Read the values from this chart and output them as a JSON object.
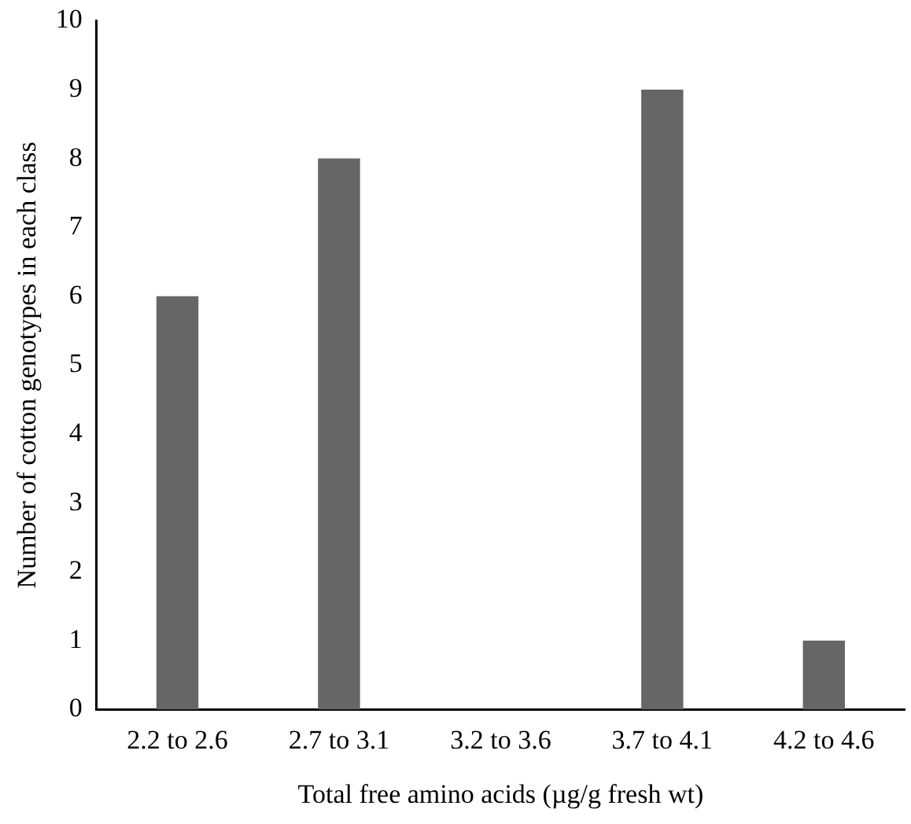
{
  "chart_data": {
    "type": "bar",
    "xlabel": "Total free amino acids (µg/g fresh wt)",
    "ylabel": "Number of cotton genotypes in each class",
    "categories": [
      "2.2 to 2.6",
      "2.7 to 3.1",
      "3.2 to 3.6",
      "3.7 to 4.1",
      "4.2 to 4.6"
    ],
    "values": [
      6,
      8,
      0,
      9,
      1
    ],
    "color": "#666666",
    "ylim": [
      0,
      10
    ],
    "yticks": [
      0,
      1,
      2,
      3,
      4,
      5,
      6,
      7,
      8,
      9,
      10
    ],
    "grid": false,
    "legend": false
  }
}
